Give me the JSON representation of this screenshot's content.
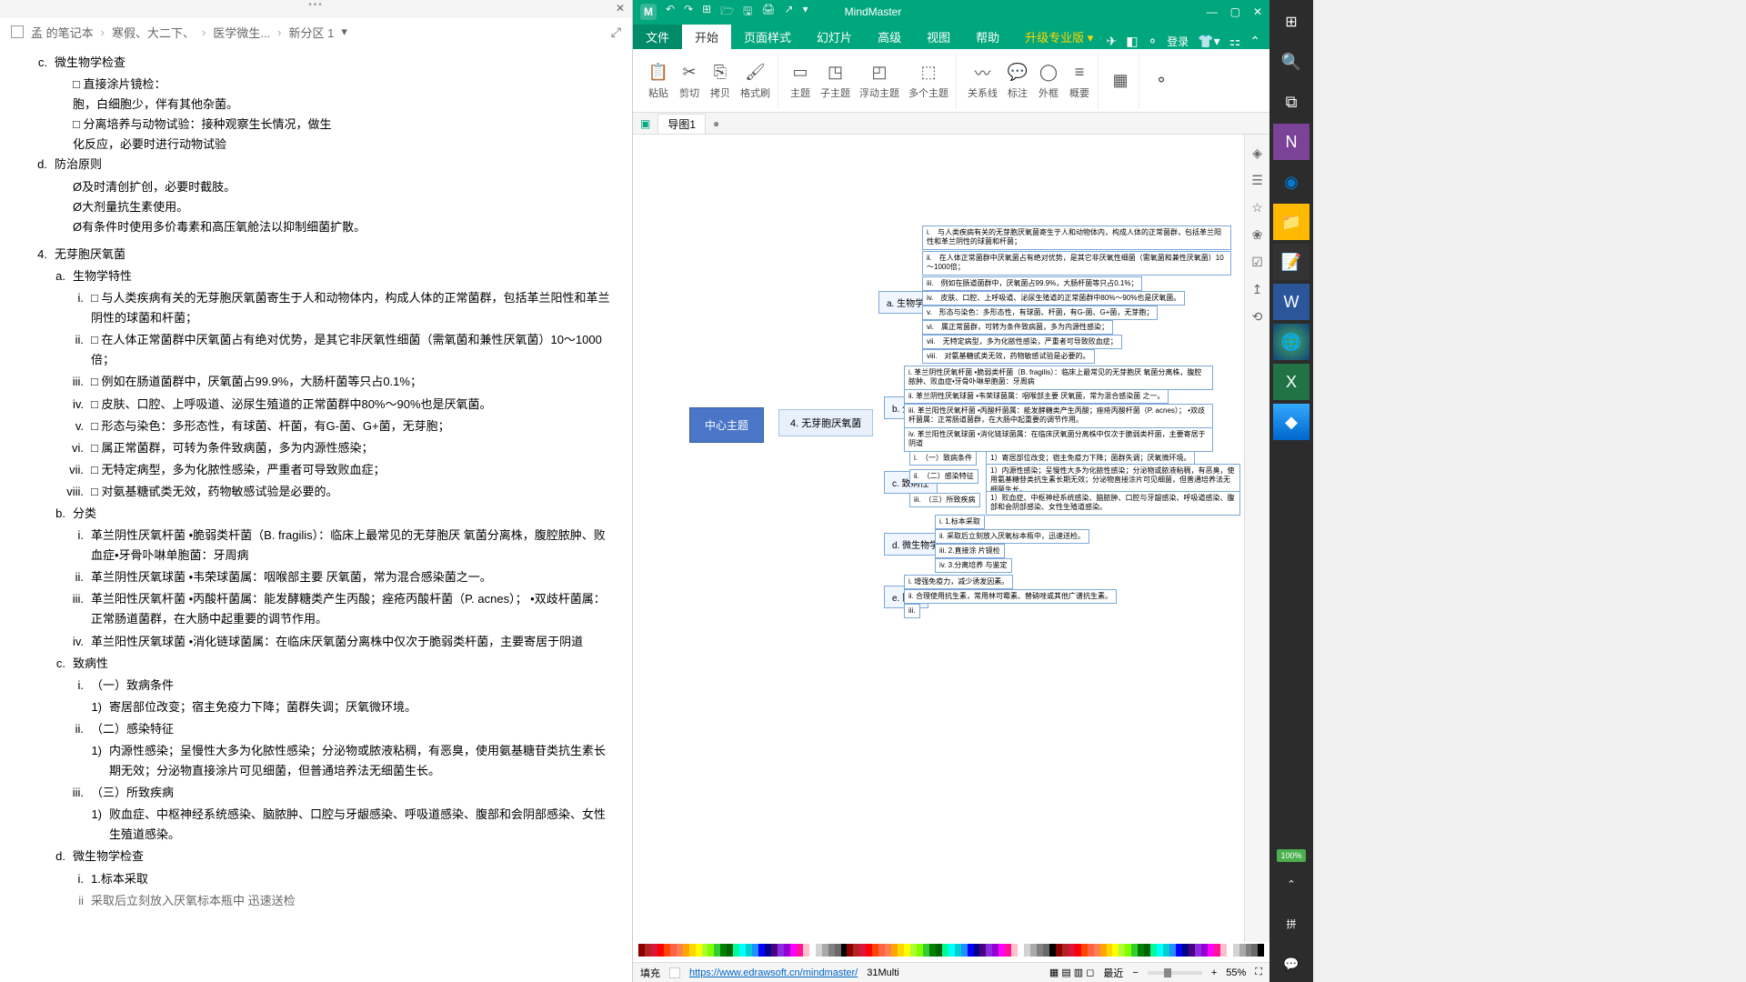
{
  "onenote": {
    "breadcrumb": [
      "孟 的笔记本",
      "寒假、大二下、",
      "医学微生...",
      "新分区 1"
    ],
    "breadcrumb_suffix": "▾",
    "content": {
      "c_title": "微生物学检查",
      "c_lines": [
        "□ 直接涂片镜检：",
        "胞，白细胞少，伴有其他杂菌。",
        "□ 分离培养与动物试验：接种观察生长情况，做生",
        "化反应，必要时进行动物试验"
      ],
      "d_title": "防治原则",
      "d_lines": [
        "Ø及时清创扩创，必要时截肢。",
        "Ø大剂量抗生素使用。",
        "Ø有条件时使用多价毒素和高压氧舱法以抑制细菌扩散。"
      ],
      "s4_title": "无芽胞厌氧菌",
      "a_title": "生物学特性",
      "a_items": [
        "□ 与人类疾病有关的无芽胞厌氧菌寄生于人和动物体内，构成人体的正常菌群，包括革兰阳性和革兰阴性的球菌和杆菌；",
        "□ 在人体正常菌群中厌氧菌占有绝对优势，是其它非厌氧性细菌（需氧菌和兼性厌氧菌）10～1000倍；",
        "□ 例如在肠道菌群中，厌氧菌占99.9%，大肠杆菌等只占0.1%；",
        "□ 皮肤、口腔、上呼吸道、泌尿生殖道的正常菌群中80%～90%也是厌氧菌。",
        "□ 形态与染色：多形态性，有球菌、杆菌，有G-菌、G+菌，无芽胞；",
        "□ 属正常菌群，可转为条件致病菌，多为内源性感染；",
        "□ 无特定病型，多为化脓性感染，严重者可导致败血症；",
        "□ 对氨基糖甙类无效，药物敏感试验是必要的。"
      ],
      "b_title": "分类",
      "b_items": [
        "革兰阴性厌氧杆菌 •脆弱类杆菌（B. fragilis）：临床上最常见的无芽胞厌 氧菌分离株，腹腔脓肿、败血症•牙骨卟啉单胞菌：牙周病",
        "革兰阴性厌氧球菌 •韦荣球菌属：咽喉部主要 厌氧菌，常为混合感染菌之一。",
        "革兰阳性厌氧杆菌 •丙酸杆菌属：能发酵糖类产生丙酸；痤疮丙酸杆菌（P. acnes）； •双歧杆菌属：正常肠道菌群，在大肠中起重要的调节作用。",
        "革兰阳性厌氧球菌 •消化链球菌属：在临床厌氧菌分离株中仅次于脆弱类杆菌，主要寄居于阴道"
      ],
      "c2_title": "致病性",
      "c2_i": "（一）致病条件",
      "c2_i_1": "寄居部位改变；宿主免疫力下降；菌群失调；厌氧微环境。",
      "c2_ii": "（二）感染特征",
      "c2_ii_1": "内源性感染；呈慢性大多为化脓性感染；分泌物或脓液粘稠，有恶臭，使用氨基糖苷类抗生素长期无效；分泌物直接涂片可见细菌，但普通培养法无细菌生长。",
      "c2_iii": "（三）所致疾病",
      "c2_iii_1": "败血症、中枢神经系统感染、脑脓肿、口腔与牙龈感染、呼吸道感染、腹部和会阴部感染、女性生殖道感染。",
      "d2_title": "微生物学检查",
      "d2_i": "1.标本采取",
      "d2_ii": "采取后立刻放入厌氧标本瓶中 迅速送检"
    }
  },
  "mindmaster": {
    "title": "MindMaster",
    "qat": [
      "↶",
      "↷",
      "⊞",
      "🗁",
      "🖫",
      "🖨",
      "↗"
    ],
    "tabs": [
      "文件",
      "开始",
      "页面样式",
      "幻灯片",
      "高级",
      "视图",
      "帮助",
      "升级专业版"
    ],
    "login": "登录",
    "ribbon": [
      {
        "icons": [
          {
            "g": "📋",
            "l": "粘贴"
          },
          {
            "g": "✂",
            "l": "剪切"
          },
          {
            "g": "⎘",
            "l": "拷贝"
          },
          {
            "g": "🖌",
            "l": "格式刷"
          }
        ]
      },
      {
        "icons": [
          {
            "g": "▭",
            "l": "主题"
          },
          {
            "g": "◳",
            "l": "子主题"
          },
          {
            "g": "◰",
            "l": "浮动主题"
          },
          {
            "g": "⬚",
            "l": "多个主题"
          }
        ]
      },
      {
        "icons": [
          {
            "g": "〰",
            "l": "关系线"
          },
          {
            "g": "💬",
            "l": "标注"
          },
          {
            "g": "◯",
            "l": "外框"
          },
          {
            "g": "≡",
            "l": "概要"
          }
        ]
      },
      {
        "icons": [
          {
            "g": "▦",
            "l": ""
          }
        ]
      },
      {
        "icons": [
          {
            "g": "⚬",
            "l": ""
          }
        ]
      }
    ],
    "doctab": "导图1",
    "nodes": {
      "central": "中心主题",
      "main": "4. 无芽胞厌氧菌",
      "a": "a. 生物学特性",
      "a_items": [
        "i.　与人类疾病有关的无芽胞厌氧菌寄生于人和动物体内，构成人体的正常菌群，包括革兰阳性和革兰阴性的球菌和杆菌；",
        "ii.　在人体正常菌群中厌氧菌占有绝对优势，是其它非厌氧性细菌（需氧菌和兼性厌氧菌）10～1000倍；",
        "iii.　例如在肠道菌群中，厌氧菌占99.9%，大肠杆菌等只占0.1%；",
        "iv.　皮肤、口腔、上呼吸道、泌尿生殖道的正常菌群中80%～90%也是厌氧菌。",
        "v.　形态与染色：多形态性，有球菌、杆菌，有G-菌、G+菌，无芽胞；",
        "vi.　属正常菌群，可转为条件致病菌，多为内源性感染；",
        "vii.　无特定病型，多为化脓性感染，严重者可导致败血症；",
        "viii.　对氨基糖甙类无效，药物敏感试验是必要的。"
      ],
      "b": "b. 分类",
      "b_items": [
        "i. 革兰阴性厌氧杆菌 •脆弱类杆菌（B. fragilis）：临床上最常见的无芽胞厌 氧菌分离株，腹腔脓肿、败血症•牙骨卟啉单胞菌：牙周病",
        "ii. 革兰阴性厌氧球菌 •韦荣球菌属：咽喉部主要 厌氧菌，常为混合感染菌 之一。",
        "iii. 革兰阳性厌氧杆菌 •丙酸杆菌属：能发酵糖类产生丙酸；痤疮丙酸杆菌（P. acnes）； •双歧杆菌属：正常肠道菌群，在大肠中起重要的调节作用。",
        "iv. 革兰阳性厌氧球菌 •消化链球菌属：在临床厌氧菌分离株中仅次于脆弱类杆菌，主要寄居于阴道"
      ],
      "c": "c. 致病性",
      "c_items": [
        "i.　（一）致病条件",
        "ii.　（二）感染特征",
        "iii.　（三）所致疾病"
      ],
      "c_sub": [
        "1）寄居部位改变；宿主免疫力下降；菌群失调；厌氧微环境。",
        "1）内源性感染；呈慢性大多为化脓性感染；分泌物或脓液粘稠，有恶臭，使用氨基糖苷类抗生素长期无效；分泌物直接涂片可见细菌，但普通培养法无细菌生长。",
        "1）败血症、中枢神经系统感染、脑脓肿、口腔与牙龈感染、呼吸道感染、腹部和会阴部感染、女性生殖道感染。"
      ],
      "d": "d. 微生物学检查",
      "d_items": [
        "i. 1.标本采取",
        "ii. 采取后立刻放入厌氧标本瓶中，迅速送检。",
        "iii. 2.直接涂 片镜检",
        "iv. 3.分离培养 与鉴定"
      ],
      "e": "e. 防治",
      "e_items": [
        "i. 增强免疫力，减少诱发因素。",
        "ii. 合理使用抗生素，常用林可霉素、替硝唑或其他广谱抗生素。",
        "iii."
      ]
    },
    "status": {
      "fill_label": "填充",
      "link": "https://www.edrawsoft.cn/mindmaster/",
      "info": "31Multi",
      "recent": "最近",
      "zoom": "55%"
    },
    "colors": {
      "bar": [
        "#8B0000",
        "#B22222",
        "#DC143C",
        "#FF0000",
        "#FF4500",
        "#FF6347",
        "#FF7F50",
        "#FFA500",
        "#FFD700",
        "#FFFF00",
        "#ADFF2F",
        "#7FFF00",
        "#32CD32",
        "#008000",
        "#006400",
        "#00FA9A",
        "#00FFFF",
        "#00CED1",
        "#1E90FF",
        "#0000FF",
        "#00008B",
        "#4B0082",
        "#8A2BE2",
        "#9400D3",
        "#FF00FF",
        "#FF1493",
        "#FFC0CB",
        "#FFFFFF",
        "#D3D3D3",
        "#A9A9A9",
        "#808080",
        "#696969",
        "#000000"
      ]
    }
  },
  "taskbar": {
    "battery": "100%"
  }
}
